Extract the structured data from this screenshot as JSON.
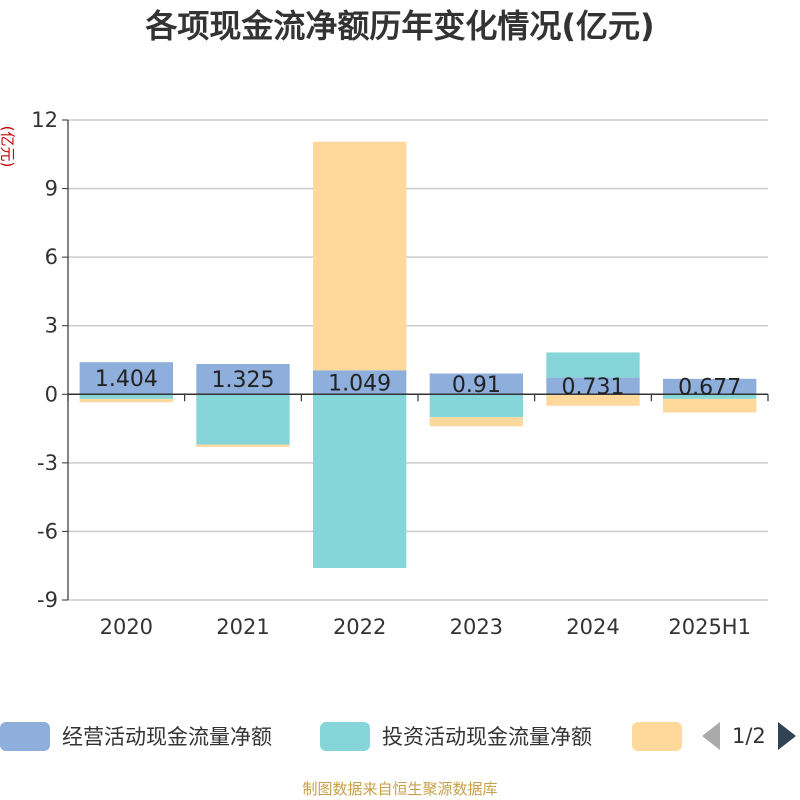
{
  "title": "各项现金流净额历年变化情况(亿元)",
  "unit_label": "(亿元)",
  "source_note": "制图数据来自恒生聚源数据库",
  "colors": {
    "operating": "#8eaedc",
    "investing": "#86d5d9",
    "financing": "#fed99b",
    "grid": "#cccccc",
    "axis": "#333333"
  },
  "legend": {
    "items": [
      {
        "label": "经营活动现金流量净额",
        "color": "#8eaedc"
      },
      {
        "label": "投资活动现金流量净额",
        "color": "#86d5d9"
      },
      {
        "label": "",
        "color": "#fed99b"
      }
    ],
    "page_text": "1/2"
  },
  "chart_data": {
    "type": "bar",
    "stacked": true,
    "title": "各项现金流净额历年变化情况(亿元)",
    "ylabel": "(亿元)",
    "categories": [
      "2020",
      "2021",
      "2022",
      "2023",
      "2024",
      "2025H1"
    ],
    "ylim": [
      -9,
      12
    ],
    "yticks": [
      12,
      9,
      6,
      3,
      0,
      -3,
      -6,
      -9
    ],
    "grid": true,
    "legend_position": "bottom",
    "series": [
      {
        "name": "经营活动现金流量净额",
        "values": [
          1.404,
          1.325,
          1.049,
          0.91,
          0.731,
          0.677
        ],
        "labels": [
          "1.404",
          "1.325",
          "1.049",
          "0.91",
          "0.731",
          "0.677"
        ]
      },
      {
        "name": "投资活动现金流量净额",
        "values": [
          -0.2,
          -2.2,
          -7.6,
          -1.0,
          1.1,
          -0.2
        ]
      },
      {
        "values": [
          -0.15,
          -0.1,
          10.0,
          -0.4,
          -0.5,
          -0.6
        ]
      }
    ]
  }
}
